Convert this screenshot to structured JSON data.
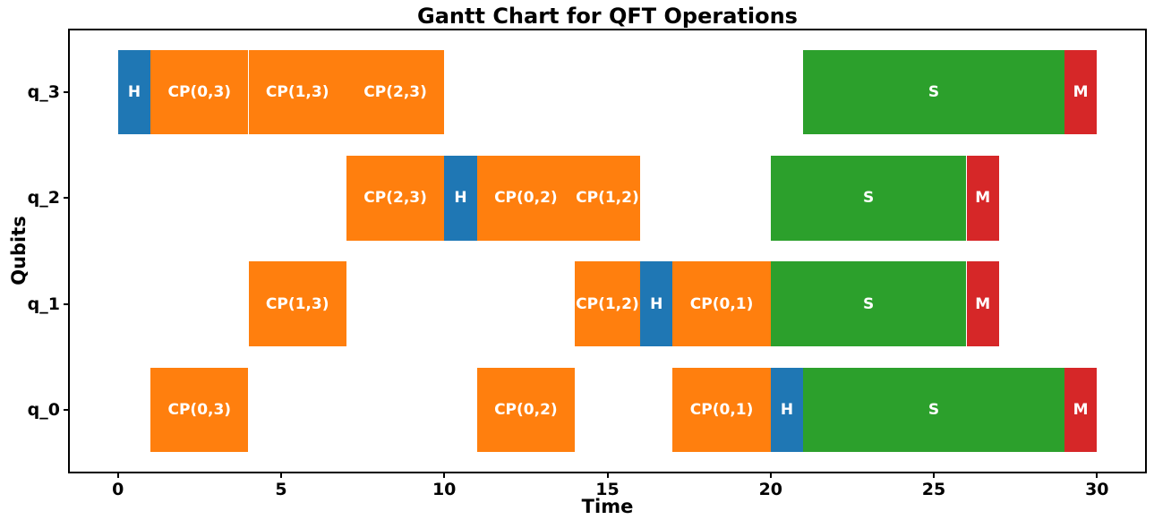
{
  "chart_data": {
    "type": "bar",
    "variant": "gantt",
    "title": "Gantt Chart for QFT Operations",
    "xlabel": "Time",
    "ylabel": "Qubits",
    "xlim": [
      -1.5,
      31.5
    ],
    "ylim": [
      -0.59,
      3.59
    ],
    "xticks": [
      0,
      5,
      10,
      15,
      20,
      25,
      30
    ],
    "yticks": [
      "q_3",
      "q_2",
      "q_1",
      "q_0"
    ],
    "bar_height": 0.8,
    "grid": false,
    "legend": "none",
    "colors": {
      "H": "#1f77b4",
      "CP": "#ff7f0e",
      "S": "#2ca02c",
      "M": "#d62728"
    },
    "bar_label_color": "#ffffff",
    "tasks": [
      {
        "row": "q_3",
        "label": "H",
        "start": 0,
        "end": 1,
        "type": "H"
      },
      {
        "row": "q_3",
        "label": "CP(0,3)",
        "start": 1,
        "end": 4,
        "type": "CP"
      },
      {
        "row": "q_3",
        "label": "CP(1,3)",
        "start": 4,
        "end": 7,
        "type": "CP"
      },
      {
        "row": "q_3",
        "label": "CP(2,3)",
        "start": 7,
        "end": 10,
        "type": "CP"
      },
      {
        "row": "q_3",
        "label": "S",
        "start": 21,
        "end": 29,
        "type": "S"
      },
      {
        "row": "q_3",
        "label": "M",
        "start": 29,
        "end": 30,
        "type": "M"
      },
      {
        "row": "q_2",
        "label": "CP(2,3)",
        "start": 7,
        "end": 10,
        "type": "CP"
      },
      {
        "row": "q_2",
        "label": "H",
        "start": 10,
        "end": 11,
        "type": "H"
      },
      {
        "row": "q_2",
        "label": "CP(0,2)",
        "start": 11,
        "end": 14,
        "type": "CP"
      },
      {
        "row": "q_2",
        "label": "CP(1,2)",
        "start": 14,
        "end": 16,
        "type": "CP"
      },
      {
        "row": "q_2",
        "label": "S",
        "start": 20,
        "end": 26,
        "type": "S"
      },
      {
        "row": "q_2",
        "label": "M",
        "start": 26,
        "end": 27,
        "type": "M"
      },
      {
        "row": "q_1",
        "label": "CP(1,3)",
        "start": 4,
        "end": 7,
        "type": "CP"
      },
      {
        "row": "q_1",
        "label": "CP(1,2)",
        "start": 14,
        "end": 16,
        "type": "CP"
      },
      {
        "row": "q_1",
        "label": "H",
        "start": 16,
        "end": 17,
        "type": "H"
      },
      {
        "row": "q_1",
        "label": "CP(0,1)",
        "start": 17,
        "end": 20,
        "type": "CP"
      },
      {
        "row": "q_1",
        "label": "S",
        "start": 20,
        "end": 26,
        "type": "S"
      },
      {
        "row": "q_1",
        "label": "M",
        "start": 26,
        "end": 27,
        "type": "M"
      },
      {
        "row": "q_0",
        "label": "CP(0,3)",
        "start": 1,
        "end": 4,
        "type": "CP"
      },
      {
        "row": "q_0",
        "label": "CP(0,2)",
        "start": 11,
        "end": 14,
        "type": "CP"
      },
      {
        "row": "q_0",
        "label": "CP(0,1)",
        "start": 17,
        "end": 20,
        "type": "CP"
      },
      {
        "row": "q_0",
        "label": "H",
        "start": 20,
        "end": 21,
        "type": "H"
      },
      {
        "row": "q_0",
        "label": "S",
        "start": 21,
        "end": 29,
        "type": "S"
      },
      {
        "row": "q_0",
        "label": "M",
        "start": 29,
        "end": 30,
        "type": "M"
      }
    ]
  }
}
